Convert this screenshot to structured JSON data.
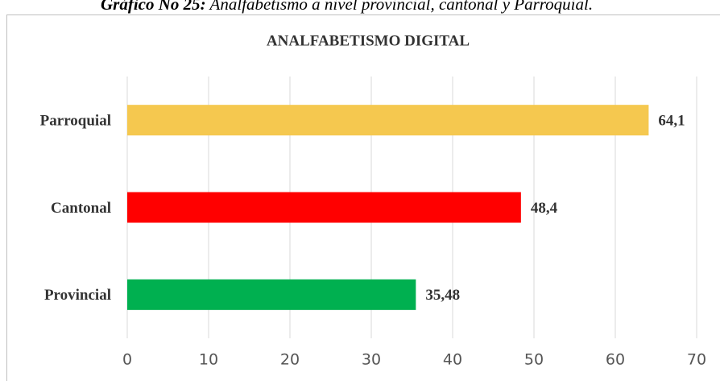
{
  "caption": {
    "label": "Gráfico No 25:",
    "text": "Analfabetismo a nivel provincial, cantonal y Parroquial."
  },
  "chart_data": {
    "type": "bar",
    "orientation": "horizontal",
    "title": "ANALFABETISMO DIGITAL",
    "categories": [
      "Provincial",
      "Cantonal",
      "Parroquial"
    ],
    "values": [
      35.48,
      48.4,
      64.1
    ],
    "value_labels": [
      "35,48",
      "48,4",
      "64,1"
    ],
    "colors": [
      "#00b050",
      "#ff0000",
      "#f5c84f"
    ],
    "xlim": [
      0,
      70
    ],
    "xticks": [
      0,
      10,
      20,
      30,
      40,
      50,
      60,
      70
    ],
    "grid": true
  }
}
